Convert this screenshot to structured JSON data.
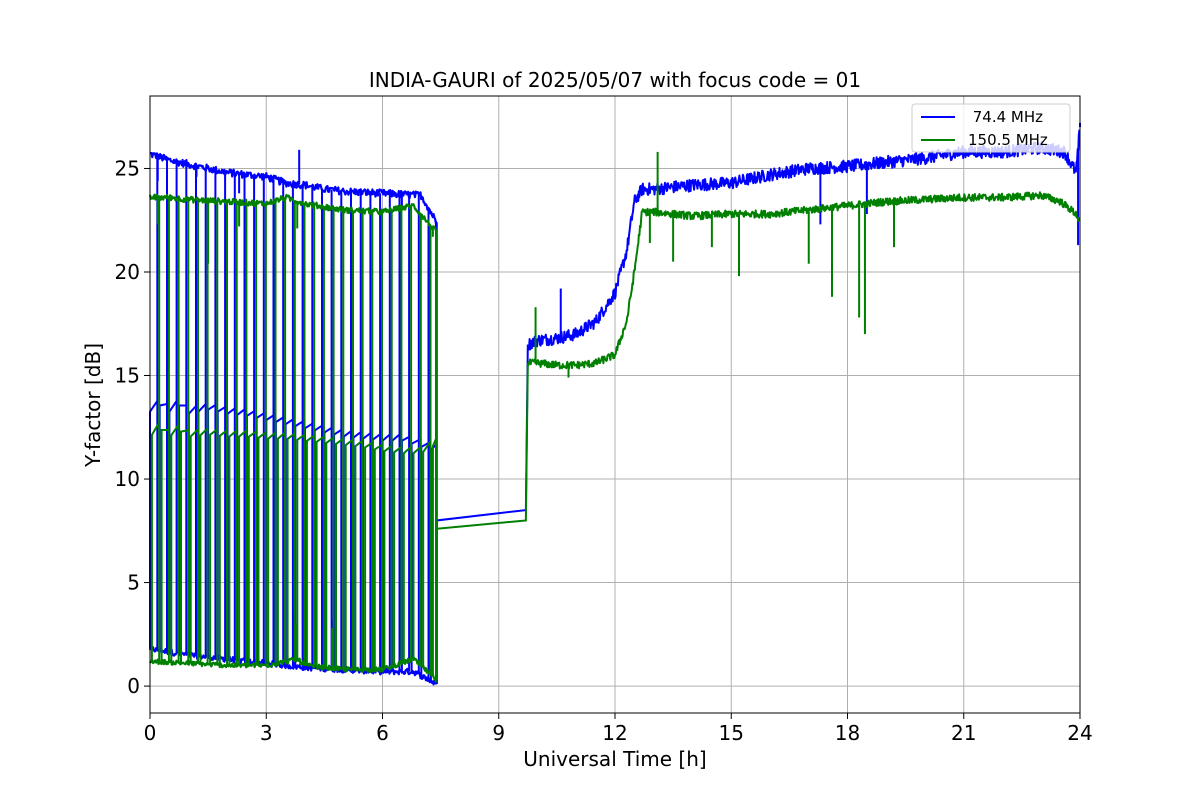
{
  "chart_data": {
    "type": "line",
    "title": "INDIA-GAURI of 2025/05/07 with focus code = 01",
    "xlabel": "Universal Time [h]",
    "ylabel": "Y-factor [dB]",
    "xlim": [
      0,
      24
    ],
    "ylim": [
      -1.3,
      28.5
    ],
    "xticks": [
      0,
      3,
      6,
      9,
      12,
      15,
      18,
      21,
      24
    ],
    "xtick_labels": [
      "0",
      "3",
      "6",
      "9",
      "12",
      "15",
      "18",
      "21",
      "24"
    ],
    "yticks": [
      0,
      5,
      10,
      15,
      20,
      25
    ],
    "ytick_labels": [
      "0",
      "5",
      "10",
      "15",
      "20",
      "25"
    ],
    "grid": true,
    "legend_position": "top-right",
    "series": [
      {
        "name": " 74.4 MHz",
        "color": "#0000ff",
        "envelope_upper": [
          [
            0,
            25.7
          ],
          [
            0.5,
            25.4
          ],
          [
            1,
            25.2
          ],
          [
            2,
            24.8
          ],
          [
            3,
            24.6
          ],
          [
            3.5,
            24.3
          ],
          [
            4,
            24.2
          ],
          [
            4.5,
            24.0
          ],
          [
            5,
            23.9
          ],
          [
            6,
            23.8
          ],
          [
            7,
            23.7
          ],
          [
            7.4,
            22.4
          ]
        ],
        "envelope_lower": [
          [
            0,
            1.8
          ],
          [
            1,
            1.5
          ],
          [
            2,
            1.3
          ],
          [
            3,
            1.1
          ],
          [
            4,
            0.9
          ],
          [
            5,
            0.8
          ],
          [
            6,
            0.7
          ],
          [
            6.8,
            0.7
          ],
          [
            7.4,
            0.1
          ]
        ],
        "cycle_mid": [
          [
            0,
            13.4
          ],
          [
            0.25,
            13.7
          ],
          [
            0.5,
            13.4
          ],
          [
            0.75,
            13.7
          ],
          [
            1,
            13.3
          ],
          [
            1.5,
            13.5
          ],
          [
            2,
            13.3
          ],
          [
            2.5,
            13.2
          ],
          [
            3,
            13.0
          ],
          [
            3.5,
            12.8
          ],
          [
            4,
            12.6
          ],
          [
            4.5,
            12.4
          ],
          [
            5,
            12.2
          ],
          [
            5.5,
            12.1
          ],
          [
            6,
            12.0
          ],
          [
            6.5,
            12.0
          ],
          [
            7,
            11.7
          ],
          [
            7.35,
            11.5
          ]
        ],
        "spikes": [
          [
            3.85,
            25.9
          ],
          [
            0.2,
            24.4
          ],
          [
            1.2,
            24.6
          ],
          [
            2.3,
            23.8
          ],
          [
            6.5,
            23.2
          ],
          [
            3.7,
            3.7
          ],
          [
            4.7,
            3.2
          ],
          [
            10.6,
            19.2
          ],
          [
            24,
            27.2
          ],
          [
            23.95,
            21.3
          ],
          [
            17.3,
            22.3
          ],
          [
            18.5,
            22.8
          ],
          [
            19.9,
            25.6
          ]
        ],
        "gap": [
          [
            7.4,
            8.0
          ],
          [
            9.7,
            8.5
          ]
        ],
        "day_part": [
          [
            9.75,
            16.5
          ],
          [
            10,
            16.7
          ],
          [
            10.5,
            16.8
          ],
          [
            11,
            17.0
          ],
          [
            11.5,
            17.6
          ],
          [
            12,
            19.0
          ],
          [
            12.3,
            21.0
          ],
          [
            12.5,
            23.4
          ],
          [
            12.7,
            24.0
          ],
          [
            13,
            24.0
          ],
          [
            14,
            24.2
          ],
          [
            15,
            24.3
          ],
          [
            16,
            24.7
          ],
          [
            17,
            25.0
          ],
          [
            18,
            25.1
          ],
          [
            19,
            25.3
          ],
          [
            20,
            25.5
          ],
          [
            21,
            25.8
          ],
          [
            22,
            25.8
          ],
          [
            23,
            26.0
          ],
          [
            23.6,
            25.8
          ],
          [
            23.9,
            24.8
          ],
          [
            24,
            27.0
          ]
        ]
      },
      {
        "name": "150.5 MHz",
        "color": "#008000",
        "envelope_upper": [
          [
            0,
            23.6
          ],
          [
            0.5,
            23.6
          ],
          [
            1,
            23.5
          ],
          [
            2,
            23.4
          ],
          [
            3,
            23.3
          ],
          [
            3.5,
            23.6
          ],
          [
            4,
            23.3
          ],
          [
            5,
            23.0
          ],
          [
            6,
            22.9
          ],
          [
            6.8,
            23.2
          ],
          [
            7.4,
            21.9
          ]
        ],
        "envelope_lower": [
          [
            0,
            1.2
          ],
          [
            1,
            1.1
          ],
          [
            2,
            1.0
          ],
          [
            3,
            1.0
          ],
          [
            3.8,
            1.3
          ],
          [
            4,
            1.0
          ],
          [
            5,
            0.8
          ],
          [
            6,
            0.8
          ],
          [
            6.8,
            1.3
          ],
          [
            7.4,
            0.3
          ]
        ],
        "cycle_mid": [
          [
            0,
            12.2
          ],
          [
            0.25,
            12.6
          ],
          [
            0.5,
            12.2
          ],
          [
            0.75,
            12.5
          ],
          [
            1,
            12.2
          ],
          [
            1.5,
            12.3
          ],
          [
            2,
            12.2
          ],
          [
            2.5,
            12.2
          ],
          [
            3,
            12.1
          ],
          [
            3.5,
            12.1
          ],
          [
            4,
            12.0
          ],
          [
            4.5,
            11.9
          ],
          [
            5,
            11.8
          ],
          [
            5.5,
            11.7
          ],
          [
            6,
            11.5
          ],
          [
            6.5,
            11.4
          ],
          [
            7,
            11.4
          ],
          [
            7.35,
            11.8
          ]
        ],
        "spikes": [
          [
            0.2,
            22.3
          ],
          [
            1.5,
            20.4
          ],
          [
            2.3,
            22.2
          ],
          [
            3.8,
            22.1
          ],
          [
            3.75,
            3.0
          ],
          [
            4.7,
            2.8
          ],
          [
            7.3,
            21.7
          ],
          [
            9.95,
            18.3
          ],
          [
            10.8,
            14.9
          ],
          [
            13.1,
            25.8
          ],
          [
            12.9,
            21.4
          ],
          [
            13.5,
            20.5
          ],
          [
            14.5,
            21.2
          ],
          [
            15.2,
            19.8
          ],
          [
            17,
            20.4
          ],
          [
            17.6,
            18.8
          ],
          [
            18.3,
            17.8
          ],
          [
            18.45,
            17.0
          ],
          [
            19.2,
            21.2
          ]
        ],
        "gap": [
          [
            7.4,
            7.6
          ],
          [
            9.7,
            8.0
          ]
        ],
        "day_part": [
          [
            9.75,
            15.6
          ],
          [
            10,
            15.6
          ],
          [
            10.5,
            15.5
          ],
          [
            11,
            15.5
          ],
          [
            11.5,
            15.6
          ],
          [
            12,
            16.0
          ],
          [
            12.3,
            17.6
          ],
          [
            12.5,
            20.0
          ],
          [
            12.7,
            22.9
          ],
          [
            13,
            22.9
          ],
          [
            14,
            22.7
          ],
          [
            15,
            22.8
          ],
          [
            16,
            22.8
          ],
          [
            17,
            23.0
          ],
          [
            18,
            23.2
          ],
          [
            19,
            23.4
          ],
          [
            20,
            23.5
          ],
          [
            21,
            23.6
          ],
          [
            22,
            23.6
          ],
          [
            23,
            23.7
          ],
          [
            23.5,
            23.4
          ],
          [
            23.9,
            22.8
          ],
          [
            24,
            22.4
          ]
        ]
      }
    ]
  }
}
